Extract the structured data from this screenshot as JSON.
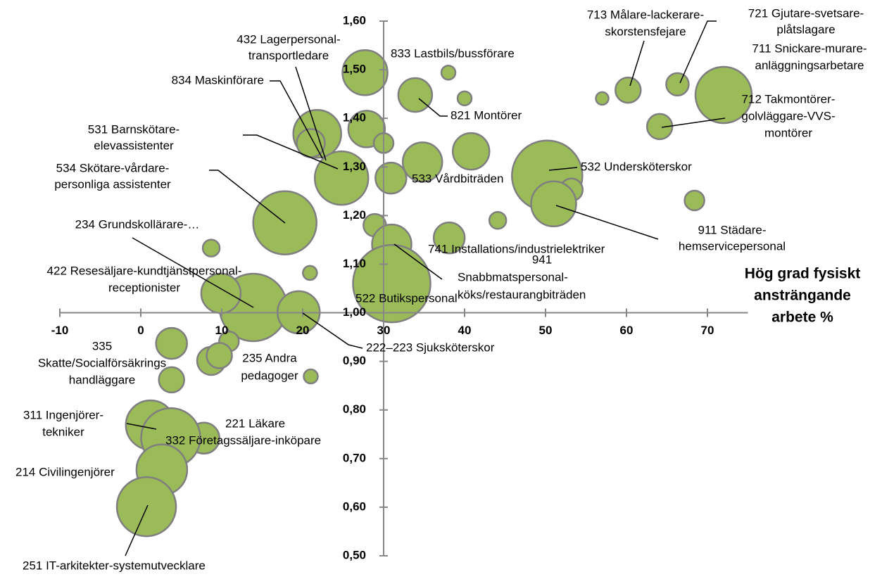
{
  "chart_data": {
    "type": "bubble",
    "x_label": [
      "Hög grad fysiskt",
      "ansträngande",
      "arbete %"
    ],
    "xlim": [
      -10,
      75
    ],
    "ylim": [
      0.5,
      1.6
    ],
    "xticks": [
      -10,
      0,
      10,
      20,
      30,
      40,
      50,
      60,
      70
    ],
    "yticks": [
      {
        "value": 0.5,
        "label": "0,50"
      },
      {
        "value": 0.6,
        "label": "0,60"
      },
      {
        "value": 0.7,
        "label": "0,70"
      },
      {
        "value": 0.8,
        "label": "0,80"
      },
      {
        "value": 0.9,
        "label": "0,90"
      },
      {
        "value": 1.0,
        "label": "1,00"
      },
      {
        "value": 1.1,
        "label": "1,10"
      },
      {
        "value": 1.2,
        "label": "1,20"
      },
      {
        "value": 1.3,
        "label": "1,30"
      },
      {
        "value": 1.4,
        "label": "1,40"
      },
      {
        "value": 1.5,
        "label": "1,50"
      },
      {
        "value": 1.6,
        "label": "1,60"
      }
    ],
    "color": "#9bbb59",
    "edge_color": "#7f7f7f",
    "x": [
      27.7,
      38.0,
      33.9,
      40.0,
      27.9,
      21.8,
      21.0,
      30.0,
      40.8,
      34.8,
      24.6,
      24.8,
      30.9,
      50.2,
      53.2,
      51.0,
      60.2,
      57.0,
      66.3,
      72.0,
      64.1,
      68.4,
      17.8,
      44.1,
      28.9,
      38.1,
      31.0,
      8.7,
      31.0,
      20.9,
      13.9,
      9.9,
      19.5,
      10.9,
      3.8,
      8.7,
      9.7,
      21.0,
      3.8,
      1.2,
      7.8,
      3.7,
      2.6,
      0.7
    ],
    "values": [
      1.494,
      1.494,
      1.448,
      1.441,
      1.378,
      1.368,
      1.349,
      1.349,
      1.332,
      1.31,
      1.299,
      1.277,
      1.277,
      1.282,
      1.253,
      1.224,
      1.458,
      1.441,
      1.47,
      1.448,
      1.383,
      1.231,
      1.185,
      1.19,
      1.18,
      1.154,
      1.141,
      1.133,
      1.06,
      1.082,
      1.011,
      1.04,
      1.001,
      0.941,
      0.937,
      0.901,
      0.912,
      0.869,
      0.862,
      0.769,
      0.742,
      0.743,
      0.677,
      0.601
    ],
    "sizes": [
      1024,
      100,
      576,
      100,
      676,
      1156,
      400,
      196,
      676,
      784,
      324,
      1444,
      484,
      2500,
      256,
      1024,
      324,
      81,
      256,
      1600,
      324,
      196,
      2025,
      144,
      256,
      484,
      784,
      144,
      3025,
      100,
      2304,
      784,
      900,
      196,
      484,
      400,
      324,
      100,
      324,
      1225,
      484,
      1764,
      1296,
      1764
    ],
    "labels": [
      [
        "833 Lastbils/bussförare"
      ],
      null,
      [
        "821 Montörer"
      ],
      null,
      null,
      null,
      [
        "834 Maskinförare"
      ],
      null,
      null,
      [
        "533 Vårdbiträden"
      ],
      [
        "432 Lagerpersonal-",
        "transportledare"
      ],
      [
        "531 Barnskötare-",
        "elevassistenter"
      ],
      null,
      [
        "532 Undersköterskor"
      ],
      null,
      [
        "911 Städare-",
        "hemservicepersonal"
      ],
      [
        "713 Målare-lackerare-",
        "skorstensfejare"
      ],
      null,
      [
        "721 Gjutare-svetsare-",
        "plåtslagare"
      ],
      [
        "711 Snickare-murare-",
        "anläggningsarbetare"
      ],
      [
        "712 Takmontörer-",
        "golvläggare-VVS-",
        "montörer"
      ],
      null,
      [
        "534 Skötare-vårdare-",
        "personliga assistenter"
      ],
      null,
      null,
      [
        "741 Installations/industrielektriker"
      ],
      [
        "941",
        "Snabbmatspersonal-",
        "köks/restaurangbiträden"
      ],
      null,
      [
        "522 Butikspersonal"
      ],
      null,
      [
        "234 Grundskollärare-…"
      ],
      [
        "422 Resesäljare-kundtjänstpersonal-",
        "receptionister"
      ],
      [
        "222–223 Sjuksköterskor"
      ],
      null,
      [
        "335",
        "Skatte/Socialförsäkrings",
        "handläggare"
      ],
      null,
      [
        "235 Andra",
        "pedagoger"
      ],
      null,
      null,
      [
        "311 Ingenjörer-",
        "tekniker"
      ],
      [
        "221 Läkare"
      ],
      [
        "332 Företagssäljare-inköpare"
      ],
      [
        "214 Civilingenjörer"
      ],
      [
        "251 IT-arkitekter-systemutvecklare"
      ]
    ]
  }
}
